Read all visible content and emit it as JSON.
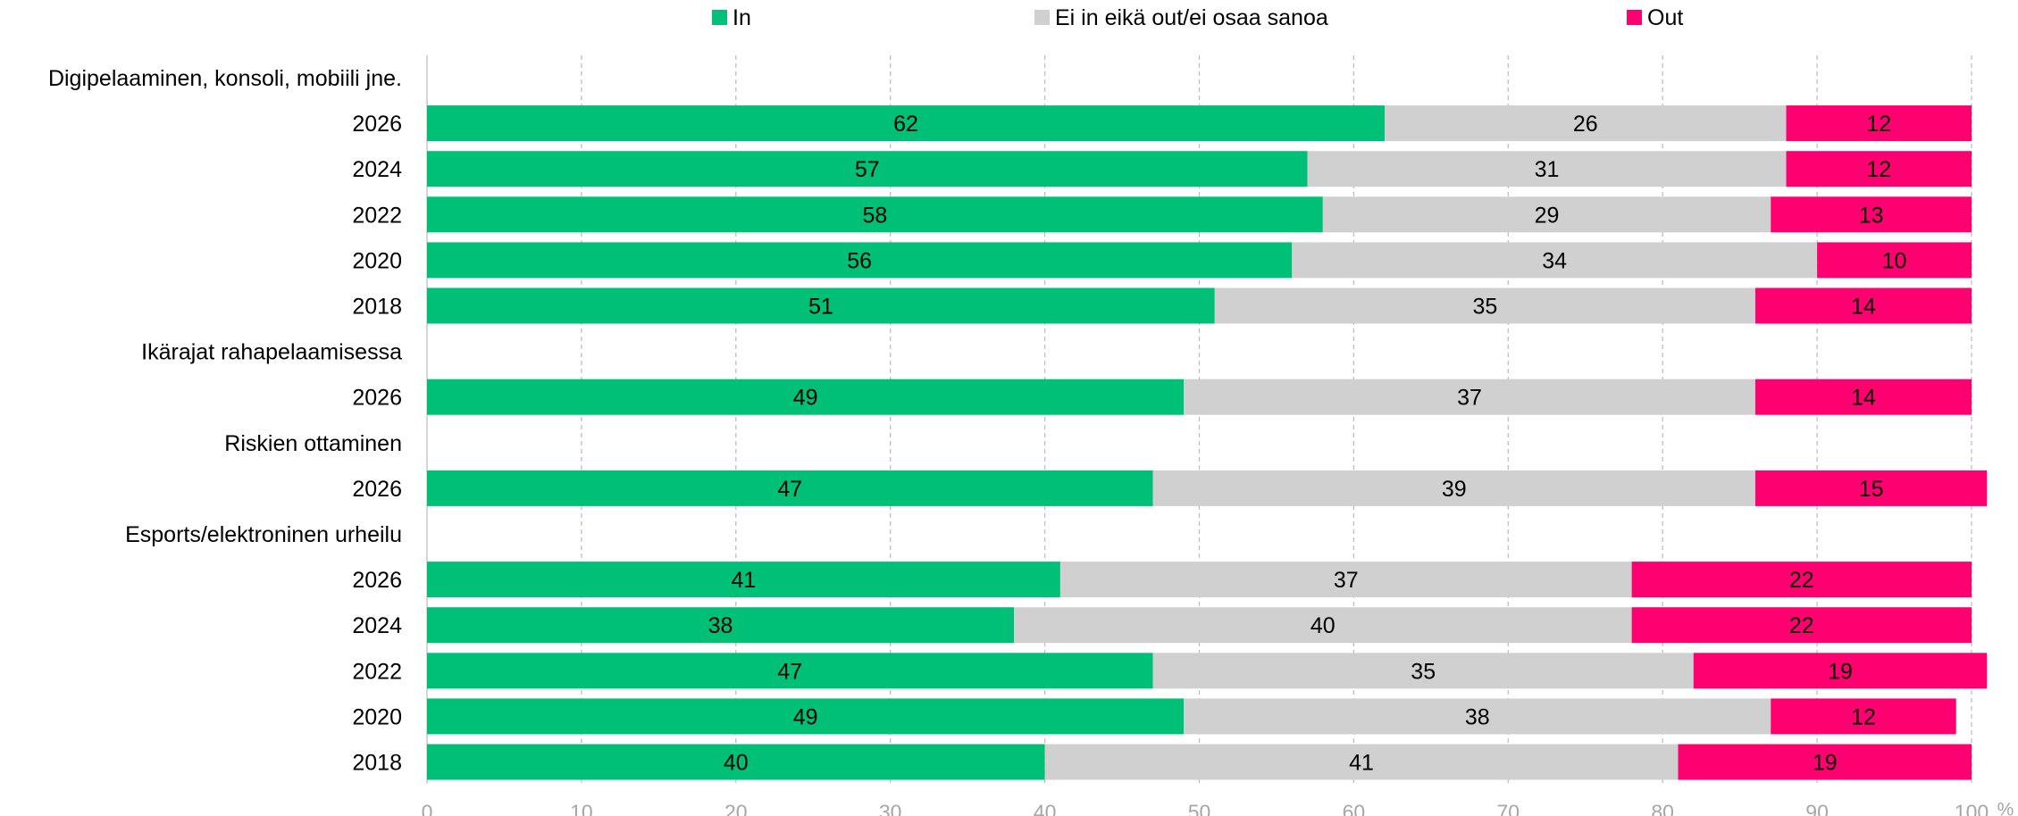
{
  "chart_data": {
    "type": "bar",
    "orientation": "horizontal",
    "stacked": true,
    "xlim": [
      0,
      100
    ],
    "xticks": [
      "0",
      "10",
      "20",
      "30",
      "40",
      "50",
      "60",
      "70",
      "80",
      "90",
      "100"
    ],
    "unit": "%",
    "grid": "vertical dashed",
    "legend_position": "top",
    "series": [
      {
        "name": "In",
        "color": "#00bf77"
      },
      {
        "name": "Ei in eikä out/ei osaa sanoa",
        "color": "#d0d0d0"
      },
      {
        "name": "Out",
        "color": "#fe006f"
      }
    ],
    "groups": [
      {
        "title": "Digipelaaminen, konsoli, mobiili jne.",
        "rows": [
          {
            "year": "2026",
            "values": [
              62,
              26,
              12
            ]
          },
          {
            "year": "2024",
            "values": [
              57,
              31,
              12
            ]
          },
          {
            "year": "2022",
            "values": [
              58,
              29,
              13
            ]
          },
          {
            "year": "2020",
            "values": [
              56,
              34,
              10
            ]
          },
          {
            "year": "2018",
            "values": [
              51,
              35,
              14
            ]
          }
        ]
      },
      {
        "title": "Ikärajat rahapelaamisessa",
        "rows": [
          {
            "year": "2026",
            "values": [
              49,
              37,
              14
            ]
          }
        ]
      },
      {
        "title": "Riskien ottaminen",
        "rows": [
          {
            "year": "2026",
            "values": [
              47,
              39,
              15
            ]
          }
        ]
      },
      {
        "title": "Esports/elektroninen urheilu",
        "rows": [
          {
            "year": "2026",
            "values": [
              41,
              37,
              22
            ]
          },
          {
            "year": "2024",
            "values": [
              38,
              40,
              22
            ]
          },
          {
            "year": "2022",
            "values": [
              47,
              35,
              19
            ]
          },
          {
            "year": "2020",
            "values": [
              49,
              38,
              12
            ]
          },
          {
            "year": "2018",
            "values": [
              40,
              41,
              19
            ]
          }
        ]
      }
    ]
  }
}
